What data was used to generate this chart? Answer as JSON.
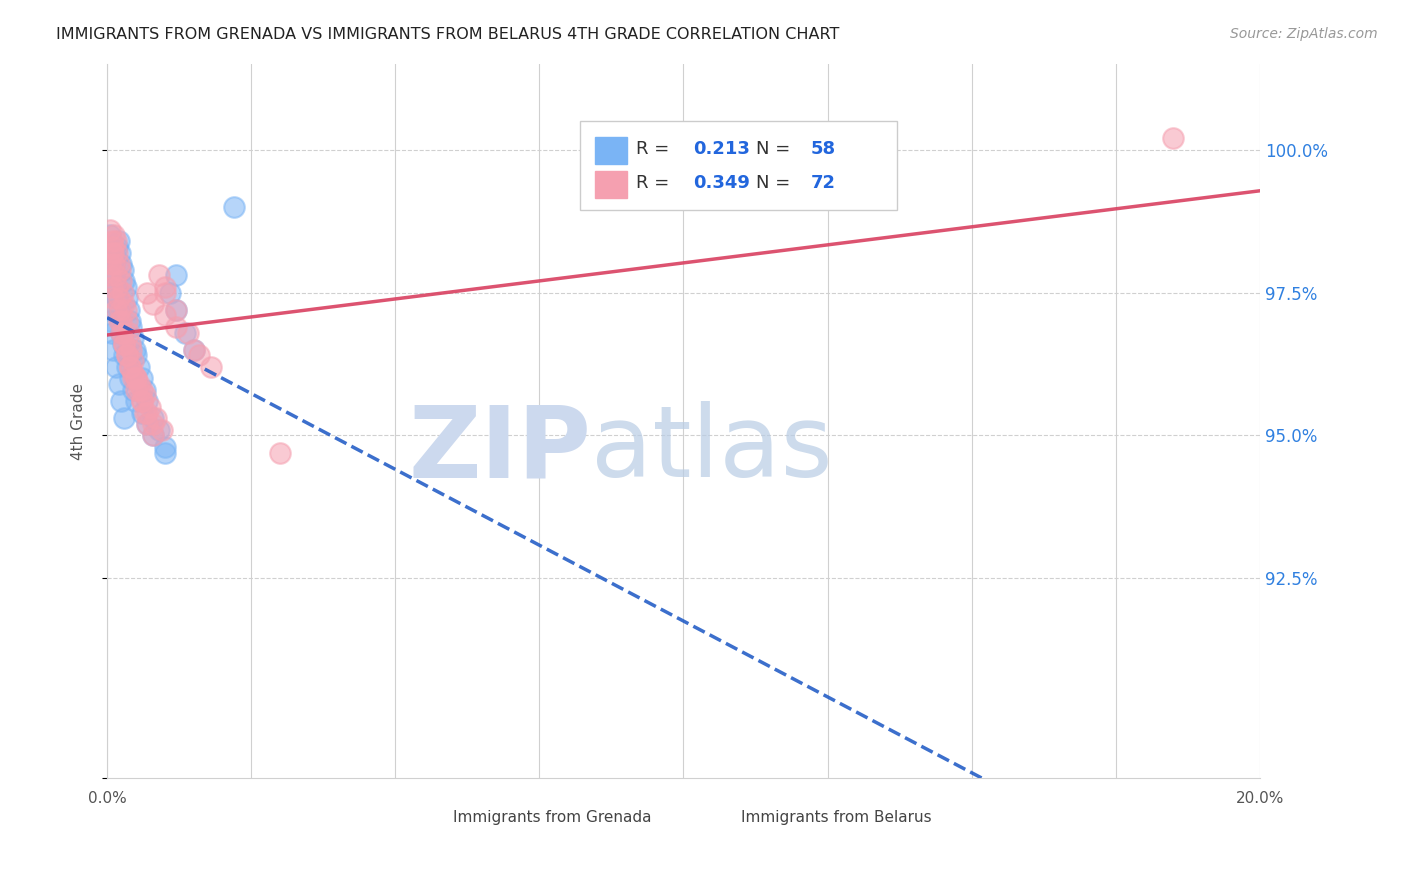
{
  "title": "IMMIGRANTS FROM GRENADA VS IMMIGRANTS FROM BELARUS 4TH GRADE CORRELATION CHART",
  "source": "Source: ZipAtlas.com",
  "ylabel": "4th Grade",
  "color_grenada": "#7ab4f5",
  "color_belarus": "#f5a0b0",
  "color_grenada_line": "#1a56c4",
  "color_belarus_line": "#d94060",
  "color_right_axis": "#3080e0",
  "xmin": 0.0,
  "xmax": 20.0,
  "ymin": 89.0,
  "ymax": 101.5,
  "yticks": [
    89.0,
    92.5,
    95.0,
    97.5,
    100.0
  ],
  "ytick_labels_right": [
    "",
    "92.5%",
    "95.0%",
    "97.5%",
    "100.0%"
  ],
  "xtick_positions": [
    0.0,
    2.5,
    5.0,
    7.5,
    10.0,
    12.5,
    15.0,
    17.5,
    20.0
  ],
  "legend_r1_val": "0.213",
  "legend_n1_val": "58",
  "legend_r2_val": "0.349",
  "legend_n2_val": "72",
  "grenada_x": [
    0.05,
    0.08,
    0.1,
    0.12,
    0.15,
    0.18,
    0.2,
    0.22,
    0.25,
    0.28,
    0.3,
    0.32,
    0.35,
    0.38,
    0.4,
    0.42,
    0.45,
    0.48,
    0.5,
    0.55,
    0.6,
    0.65,
    0.7,
    0.8,
    0.9,
    1.0,
    1.1,
    1.2,
    1.35,
    1.5,
    0.05,
    0.08,
    0.1,
    0.12,
    0.15,
    0.18,
    0.2,
    0.22,
    0.25,
    0.28,
    0.3,
    0.35,
    0.4,
    0.45,
    0.5,
    0.6,
    0.7,
    0.8,
    1.0,
    1.2,
    0.05,
    0.08,
    0.1,
    0.15,
    0.2,
    0.25,
    0.3,
    2.2
  ],
  "grenada_y": [
    97.2,
    97.5,
    97.8,
    98.0,
    98.1,
    98.3,
    98.4,
    98.2,
    98.0,
    97.9,
    97.7,
    97.6,
    97.4,
    97.2,
    97.0,
    96.9,
    96.7,
    96.5,
    96.4,
    96.2,
    96.0,
    95.8,
    95.6,
    95.3,
    95.1,
    94.8,
    97.5,
    97.2,
    96.8,
    96.5,
    98.5,
    98.3,
    98.1,
    97.8,
    97.6,
    97.4,
    97.2,
    97.0,
    96.8,
    96.6,
    96.4,
    96.2,
    96.0,
    95.8,
    95.6,
    95.4,
    95.2,
    95.0,
    94.7,
    97.8,
    97.0,
    96.8,
    96.5,
    96.2,
    95.9,
    95.6,
    95.3,
    99.0
  ],
  "belarus_x": [
    0.05,
    0.08,
    0.1,
    0.12,
    0.15,
    0.18,
    0.2,
    0.22,
    0.25,
    0.28,
    0.3,
    0.32,
    0.35,
    0.38,
    0.4,
    0.42,
    0.45,
    0.5,
    0.55,
    0.6,
    0.65,
    0.7,
    0.8,
    0.9,
    1.0,
    1.2,
    1.4,
    1.6,
    0.05,
    0.08,
    0.1,
    0.12,
    0.15,
    0.18,
    0.2,
    0.22,
    0.25,
    0.28,
    0.3,
    0.35,
    0.4,
    0.45,
    0.5,
    0.6,
    0.7,
    0.8,
    1.0,
    0.05,
    0.08,
    0.1,
    0.15,
    0.2,
    0.25,
    0.3,
    0.35,
    0.4,
    0.5,
    0.6,
    0.7,
    0.8,
    1.0,
    1.2,
    1.5,
    1.8,
    0.45,
    0.55,
    0.65,
    0.75,
    0.85,
    0.95,
    18.5,
    3.0
  ],
  "belarus_y": [
    98.0,
    98.2,
    98.3,
    98.5,
    98.4,
    98.2,
    98.0,
    97.9,
    97.7,
    97.5,
    97.3,
    97.2,
    97.0,
    96.8,
    96.6,
    96.5,
    96.3,
    96.0,
    95.8,
    95.6,
    95.4,
    95.2,
    95.0,
    97.8,
    97.5,
    97.2,
    96.8,
    96.4,
    98.6,
    98.4,
    98.2,
    98.0,
    97.8,
    97.6,
    97.4,
    97.2,
    97.0,
    96.8,
    96.6,
    96.4,
    96.2,
    96.0,
    95.8,
    95.6,
    95.4,
    95.2,
    97.6,
    97.8,
    97.6,
    97.4,
    97.2,
    97.0,
    96.8,
    96.6,
    96.4,
    96.2,
    96.0,
    95.8,
    97.5,
    97.3,
    97.1,
    96.9,
    96.5,
    96.2,
    96.1,
    95.9,
    95.7,
    95.5,
    95.3,
    95.1,
    100.2,
    94.7
  ]
}
